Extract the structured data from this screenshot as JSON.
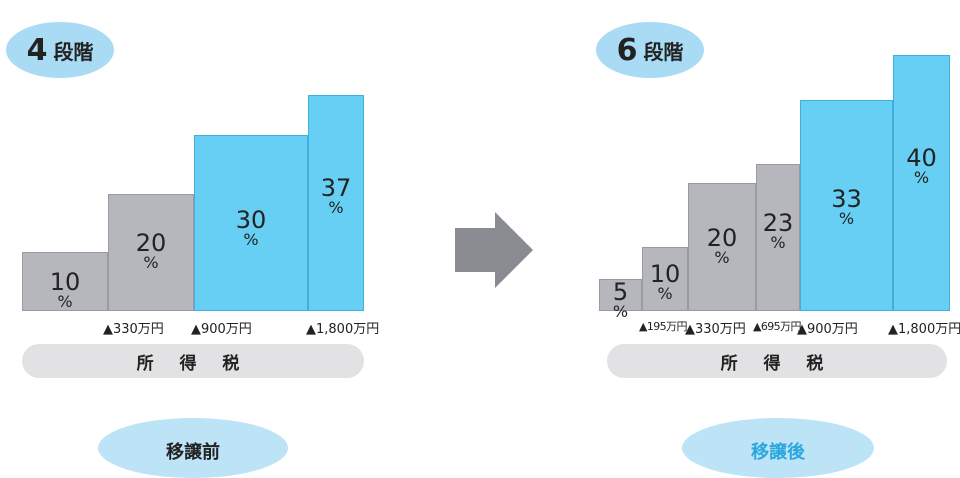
{
  "before": {
    "badge": {
      "number": "4",
      "word": "段階"
    },
    "tax_label": "所 得 税",
    "caption": "移譲前",
    "caption_color": "#222222"
  },
  "after": {
    "badge": {
      "number": "6",
      "word": "段階"
    },
    "tax_label": "所 得 税",
    "caption": "移譲後",
    "caption_color": "#2aa7df"
  },
  "colors": {
    "gray": "#b6b7bc",
    "blue": "#67cff3",
    "arrow": "#8a8c92"
  },
  "chart_data": [
    {
      "type": "bar",
      "categories": [
        "10",
        "20",
        "30",
        "37"
      ],
      "values": [
        10,
        20,
        30,
        37
      ],
      "unit": "%",
      "series_colors": [
        "gray",
        "gray",
        "blue",
        "blue"
      ],
      "thresholds": [
        "▲330万円",
        "▲900万円",
        "▲1,800万円"
      ]
    },
    {
      "type": "bar",
      "categories": [
        "5",
        "10",
        "20",
        "23",
        "33",
        "40"
      ],
      "values": [
        5,
        10,
        20,
        23,
        33,
        40
      ],
      "unit": "%",
      "series_colors": [
        "gray",
        "gray",
        "gray",
        "gray",
        "blue",
        "blue"
      ],
      "thresholds": [
        "▲195万円",
        "▲330万円",
        "▲695万円",
        "▲900万円",
        "▲1,800万円"
      ]
    }
  ]
}
